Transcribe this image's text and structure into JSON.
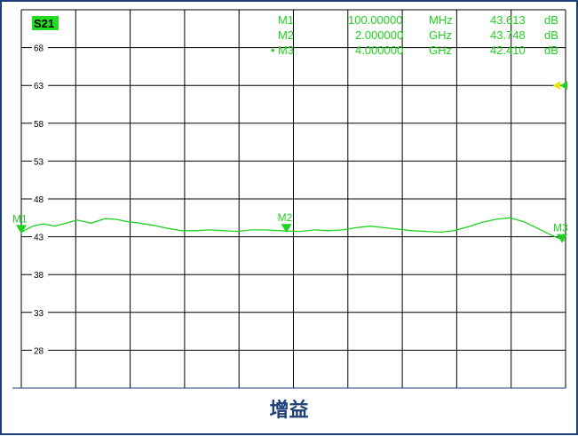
{
  "caption": "增益",
  "trace_name": "S21",
  "colors": {
    "trace": "#22d022",
    "marker_fill": "#22d022",
    "marker_text": "#22d022",
    "trace_label_bg": "#22dd22",
    "grid": "#000000",
    "frame": "#1f3f78",
    "reference_arrow": "#e8e800",
    "caption": "#1f3f78"
  },
  "markers": [
    {
      "label": "M1",
      "active": false,
      "stimulus": "100.00000",
      "stimulus_unit": "MHz",
      "response": "43.613",
      "response_unit": "dB",
      "tag": "M1"
    },
    {
      "label": "M2",
      "active": false,
      "stimulus": "2.000000",
      "stimulus_unit": "GHz",
      "response": "43.748",
      "response_unit": "dB",
      "tag": "M2"
    },
    {
      "label": "M3",
      "active": true,
      "active_symbol": "•",
      "stimulus": "4.000000",
      "stimulus_unit": "GHz",
      "response": "42.410",
      "response_unit": "dB",
      "tag": "M3"
    }
  ],
  "chart_data": {
    "type": "line",
    "title": "",
    "xlabel": "",
    "ylabel": "",
    "x_unit": "GHz",
    "y_unit": "dB",
    "xlim": [
      0.1,
      4.0
    ],
    "ylim": [
      23,
      73
    ],
    "yticks": [
      68,
      63,
      58,
      53,
      48,
      43,
      38,
      33,
      28
    ],
    "x_divisions": 10,
    "y_divisions": 10,
    "reference_level": 63,
    "grid": true,
    "legend": "none",
    "series": [
      {
        "x": [
          0.1,
          0.18,
          0.26,
          0.34,
          0.42,
          0.5,
          0.6,
          0.7,
          0.78,
          0.86,
          0.95,
          1.05,
          1.15,
          1.25,
          1.35,
          1.45,
          1.55,
          1.65,
          1.75,
          1.85,
          1.95,
          2.0,
          2.1,
          2.2,
          2.3,
          2.4,
          2.5,
          2.6,
          2.7,
          2.8,
          2.9,
          3.0,
          3.1,
          3.2,
          3.3,
          3.4,
          3.5,
          3.6,
          3.7,
          3.8,
          3.9,
          4.0
        ],
        "y": [
          43.6,
          44.4,
          44.7,
          44.4,
          44.8,
          45.2,
          44.8,
          45.4,
          45.3,
          45.0,
          44.8,
          44.5,
          44.1,
          43.8,
          43.8,
          43.9,
          43.8,
          43.7,
          43.9,
          43.9,
          43.8,
          43.75,
          43.7,
          43.9,
          43.8,
          43.9,
          44.2,
          44.4,
          44.2,
          44.0,
          43.8,
          43.7,
          43.6,
          43.8,
          44.3,
          44.9,
          45.3,
          45.5,
          45.0,
          44.1,
          43.2,
          42.41
        ]
      }
    ]
  }
}
